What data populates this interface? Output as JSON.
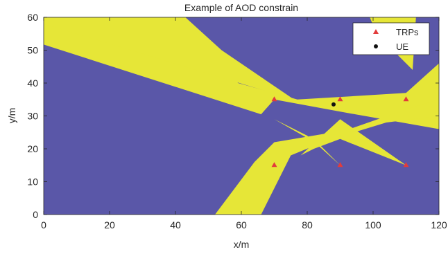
{
  "chart_data": {
    "type": "heatmap",
    "title": "Example of AOD constrain",
    "xlabel": "x/m",
    "ylabel": "y/m",
    "xlim": [
      0,
      120
    ],
    "ylim": [
      0,
      60
    ],
    "xticks": [
      0,
      20,
      40,
      60,
      80,
      100,
      120
    ],
    "yticks": [
      0,
      10,
      20,
      30,
      40,
      50,
      60
    ],
    "grid": false,
    "legend_position": "top-right",
    "colors": {
      "background_region": "#5a57a8",
      "feasible_region": "#e6e637",
      "trp_marker": "#e23b3b",
      "ue_marker": "#111111"
    },
    "regions_description": "yellow wedges = AOD-constrained beam regions from each TRP",
    "feasible_regions": [
      {
        "polygon": [
          [
            0,
            60
          ],
          [
            0,
            51.7
          ],
          [
            66,
            30.5
          ],
          [
            70,
            35
          ],
          [
            90,
            31.3
          ],
          [
            120,
            26
          ],
          [
            120,
            46
          ],
          [
            110,
            37
          ],
          [
            77,
            35
          ],
          [
            59,
            40
          ],
          [
            43,
            60
          ]
        ]
      },
      {
        "polygon": [
          [
            76,
            35
          ],
          [
            54,
            50
          ],
          [
            43,
            60
          ],
          [
            0,
            60
          ],
          [
            0,
            58
          ]
        ]
      },
      {
        "polygon": [
          [
            52,
            0
          ],
          [
            64,
            16
          ],
          [
            70,
            22
          ],
          [
            92,
            25.7
          ],
          [
            110,
            32
          ],
          [
            120,
            35
          ],
          [
            120,
            30
          ],
          [
            104,
            28
          ],
          [
            86,
            22.5
          ],
          [
            75,
            18
          ],
          [
            66,
            0
          ]
        ]
      },
      {
        "polygon": [
          [
            78,
            18
          ],
          [
            90,
            29
          ],
          [
            110,
            15
          ],
          [
            90,
            23
          ],
          [
            82,
            20
          ]
        ]
      },
      {
        "polygon": [
          [
            99,
            60
          ],
          [
            113,
            60
          ],
          [
            112,
            44
          ],
          [
            101,
            55
          ]
        ]
      },
      {
        "polygon": [
          [
            70,
            29
          ],
          [
            80,
            24
          ],
          [
            90,
            15
          ],
          [
            84,
            21
          ]
        ]
      }
    ],
    "series": [
      {
        "name": "TRPs",
        "marker": "triangle",
        "color": "#e23b3b",
        "x": [
          70,
          90,
          110,
          70,
          90,
          110
        ],
        "y": [
          35,
          35,
          35,
          15,
          15,
          15
        ]
      },
      {
        "name": "UE",
        "marker": "circle",
        "color": "#111111",
        "x": [
          88
        ],
        "y": [
          33.5
        ]
      }
    ]
  }
}
